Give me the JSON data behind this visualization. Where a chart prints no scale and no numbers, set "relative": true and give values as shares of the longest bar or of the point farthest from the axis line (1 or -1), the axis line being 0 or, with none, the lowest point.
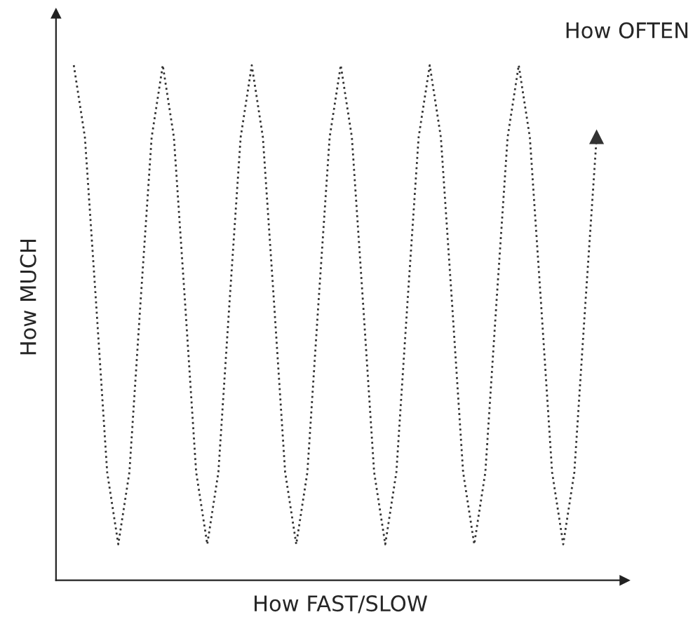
{
  "chart_data": {
    "type": "line",
    "relative": true,
    "xlabel": "How FAST/SLOW",
    "ylabel": "How MUCH",
    "annotations": [
      "How OFTEN"
    ],
    "line_style": "dotted",
    "categories": [
      null,
      null,
      null,
      null,
      null,
      null,
      null,
      null,
      null,
      null,
      null,
      null,
      null,
      null,
      null,
      null,
      null,
      null,
      null,
      null,
      null,
      null,
      null,
      null,
      null,
      null,
      null,
      null,
      null,
      null,
      null,
      null,
      null,
      null,
      null,
      null,
      null,
      null,
      null,
      null,
      null,
      null,
      null,
      null,
      null,
      null,
      null,
      null
    ],
    "series": [
      {
        "color": "#333333",
        "values": [
          1,
          0.86,
          0.54,
          0.21,
          0.07,
          0.21,
          0.54,
          0.86,
          1,
          0.86,
          0.54,
          0.21,
          0.07,
          0.21,
          0.54,
          0.86,
          1,
          0.86,
          0.54,
          0.21,
          0.07,
          0.21,
          0.54,
          0.86,
          1,
          0.86,
          0.54,
          0.21,
          0.07,
          0.21,
          0.54,
          0.86,
          1,
          0.86,
          0.54,
          0.21,
          0.07,
          0.21,
          0.54,
          0.86,
          1,
          0.86,
          0.54,
          0.21,
          0.07,
          0.21,
          0.54,
          0.86
        ]
      }
    ]
  }
}
